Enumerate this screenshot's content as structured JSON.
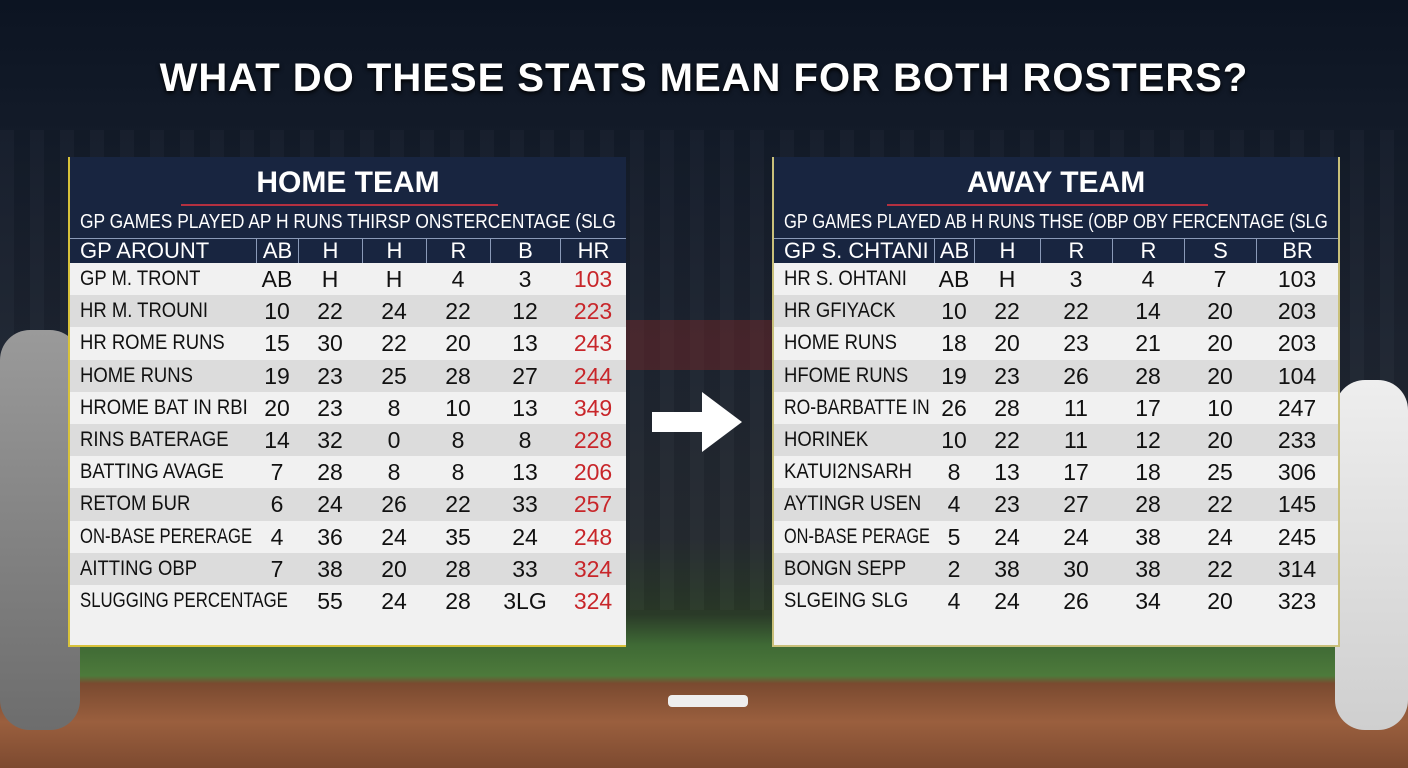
{
  "headline": "WHAT DO THESE STATS MEAN FOR BOTH ROSTERS?",
  "home": {
    "title": "HOME TEAM",
    "header_line": "GP  GAMES PLAYED AP          H   RUNS THIRSP ONSTERCENTAGE (SLG",
    "columns": [
      "GP  AROUNT",
      "AB",
      "H",
      "H",
      "R",
      "B",
      "HR"
    ],
    "rows": [
      [
        "GP  M. TRONT",
        "AB",
        "H",
        "H",
        "4",
        "3",
        "103"
      ],
      [
        "HR  M. TROUNI",
        "10",
        "22",
        "24",
        "22",
        "12",
        "223"
      ],
      [
        "HR  ROME RUNS",
        "15",
        "30",
        "22",
        "20",
        "13",
        "243"
      ],
      [
        "HOME RUNS",
        "19",
        "23",
        "25",
        "28",
        "27",
        "244"
      ],
      [
        "HROME BAT IN RBI",
        "20",
        "23",
        "8",
        "10",
        "13",
        "349"
      ],
      [
        "RINS BATERAGE",
        "14",
        "32",
        "0",
        "8",
        "8",
        "228"
      ],
      [
        "BATTING AVAGE",
        "7",
        "28",
        "8",
        "8",
        "13",
        "206"
      ],
      [
        "RETOM БUR",
        "6",
        "24",
        "26",
        "22",
        "33",
        "257"
      ],
      [
        "ON-BASE PERERAGE",
        "4",
        "36",
        "24",
        "35",
        "24",
        "248"
      ],
      [
        "AITTING OBP",
        "7",
        "38",
        "20",
        "28",
        "33",
        "324"
      ],
      [
        "SLUGGING PERCENTAGE",
        "",
        "55",
        "24",
        "28",
        "3LG",
        "324"
      ]
    ],
    "last_col_color": "#c8262a"
  },
  "away": {
    "title": "AWAY TEAM",
    "header_line": "GP  GAMES PLAYED AB          H   RUNS THSE (OBP OBY FERCENTAGE (SLG",
    "columns": [
      "GP  S. CHTANI",
      "AB",
      "H",
      "R",
      "R",
      "S",
      "BR"
    ],
    "rows": [
      [
        "HR  S. OHTANI",
        "AB",
        "H",
        "3",
        "4",
        "7",
        "103"
      ],
      [
        "HR  GFIYACK",
        "10",
        "22",
        "22",
        "14",
        "20",
        "203"
      ],
      [
        "HOME RUNS",
        "18",
        "20",
        "23",
        "21",
        "20",
        "203"
      ],
      [
        "HFOME RUNS",
        "19",
        "23",
        "26",
        "28",
        "20",
        "104"
      ],
      [
        "RO-BARBATTE IN",
        "26",
        "28",
        "11",
        "17",
        "10",
        "247"
      ],
      [
        "HORINEK",
        "10",
        "22",
        "11",
        "12",
        "20",
        "233"
      ],
      [
        "KATUI2NSARH",
        "8",
        "13",
        "17",
        "18",
        "25",
        "306"
      ],
      [
        "AYTINGR USEN",
        "4",
        "23",
        "27",
        "28",
        "22",
        "145"
      ],
      [
        "ON-BASE PERAGE",
        "5",
        "24",
        "24",
        "38",
        "24",
        "245"
      ],
      [
        "BONGN SEPP",
        "2",
        "38",
        "30",
        "38",
        "22",
        "314"
      ],
      [
        "SLGEING SLG",
        "4",
        "24",
        "26",
        "34",
        "20",
        "323"
      ]
    ]
  },
  "arrow_icon": "right-arrow-icon"
}
